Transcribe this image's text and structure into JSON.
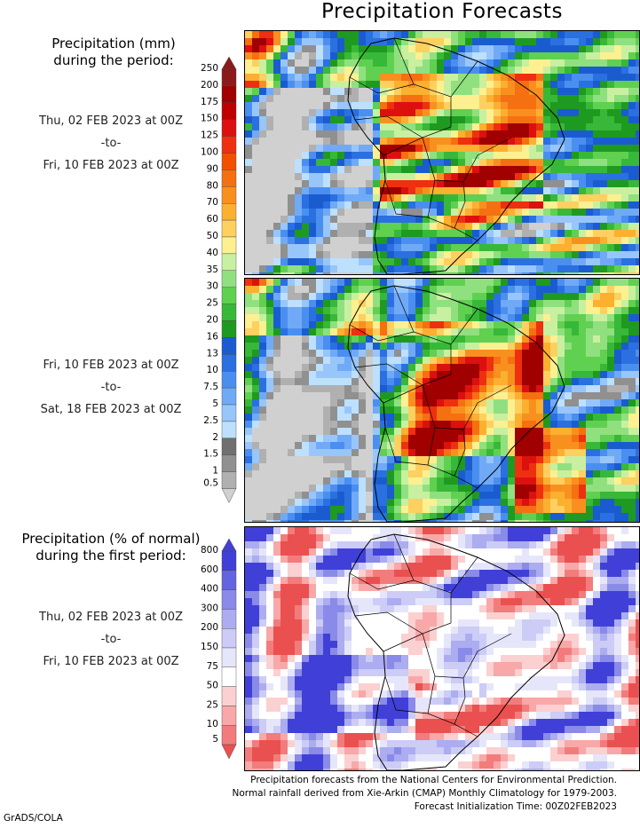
{
  "title": "Precipitation Forecasts",
  "top_legend": {
    "heading_line1": "Precipitation (mm)",
    "heading_line2": "during the period:",
    "ticks": [
      "250",
      "200",
      "175",
      "150",
      "125",
      "100",
      "90",
      "80",
      "70",
      "60",
      "50",
      "40",
      "35",
      "30",
      "25",
      "20",
      "16",
      "13",
      "10",
      "7.5",
      "5",
      "2.5",
      "2",
      "1.5",
      "1",
      "0.5"
    ],
    "colors": [
      "#8b1a1a",
      "#a00000",
      "#c00000",
      "#dd1010",
      "#ee3010",
      "#f05000",
      "#f57010",
      "#f89020",
      "#fbb030",
      "#fdd060",
      "#fdf090",
      "#c8f0a0",
      "#90e080",
      "#60d050",
      "#38b838",
      "#1f9a20",
      "#1a5cd0",
      "#2a70e0",
      "#4a8ff0",
      "#70aaf6",
      "#98c6fa",
      "#bde0fc",
      "#707070",
      "#909090",
      "#b0b0b0",
      "#d0d0d0"
    ]
  },
  "period1": {
    "start": "Thu, 02 FEB 2023 at 00Z",
    "sep": "-to-",
    "end": "Fri, 10 FEB 2023 at 00Z"
  },
  "period2": {
    "start": "Fri, 10 FEB 2023 at 00Z",
    "sep": "-to-",
    "end": "Sat, 18 FEB 2023 at 00Z"
  },
  "bottom_legend": {
    "heading_line1": "Precipitation (% of normal)",
    "heading_line2": "during the first period:",
    "ticks": [
      "800",
      "600",
      "400",
      "300",
      "200",
      "150",
      "75",
      "50",
      "25",
      "10",
      "5"
    ],
    "colors": [
      "#4040d8",
      "#6464e0",
      "#8a8ae8",
      "#acacf0",
      "#ccccf6",
      "#e6e6fa",
      "#ffffff",
      "#fbd0d0",
      "#f8a8a8",
      "#f27c7c",
      "#ea5050"
    ]
  },
  "period3": {
    "start": "Thu, 02 FEB 2023 at 00Z",
    "sep": "-to-",
    "end": "Fri, 10 FEB 2023 at 00Z"
  },
  "footer": {
    "line1": "Precipitation forecasts from the National Centers for Environmental Prediction.",
    "line2": "Normal rainfall derived from Xie-Arkin (CMAP) Monthly Climatology for 1979-2003.",
    "line3": "Forecast Initialization Time: 00Z02FEB2023"
  },
  "credit": "GrADS/COLA"
}
